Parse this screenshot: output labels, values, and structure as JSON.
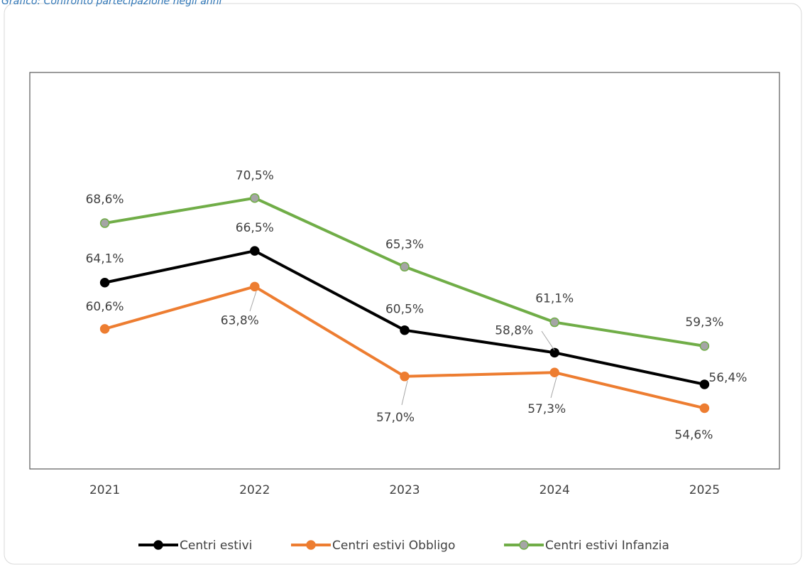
{
  "chart_data": {
    "type": "line",
    "title": "Grafico: Confronto partecipazione negli anni",
    "categories": [
      "2021",
      "2022",
      "2023",
      "2024",
      "2025"
    ],
    "ylim": [
      50,
      80
    ],
    "legend": "bottom",
    "series": [
      {
        "name": "Centri estivi",
        "color": "#000000",
        "values": [
          64.1,
          66.5,
          60.5,
          58.8,
          56.4
        ],
        "value_labels": [
          "64,1%",
          "66,5%",
          "60,5%",
          "58,8%",
          "56,4%"
        ]
      },
      {
        "name": "Centri estivi Obbligo",
        "color": "#ed7d31",
        "values": [
          60.6,
          63.8,
          57.0,
          57.3,
          54.6
        ],
        "value_labels": [
          "60,6%",
          "63,8%",
          "57,0%",
          "57,3%",
          "54,6%"
        ]
      },
      {
        "name": "Centri estivi Infanzia",
        "color": "#70ad47",
        "marker_color": "#a5a5a5",
        "values": [
          68.6,
          70.5,
          65.3,
          61.1,
          59.3
        ],
        "value_labels": [
          "68,6%",
          "70,5%",
          "65,3%",
          "61,1%",
          "59,3%"
        ]
      }
    ]
  }
}
